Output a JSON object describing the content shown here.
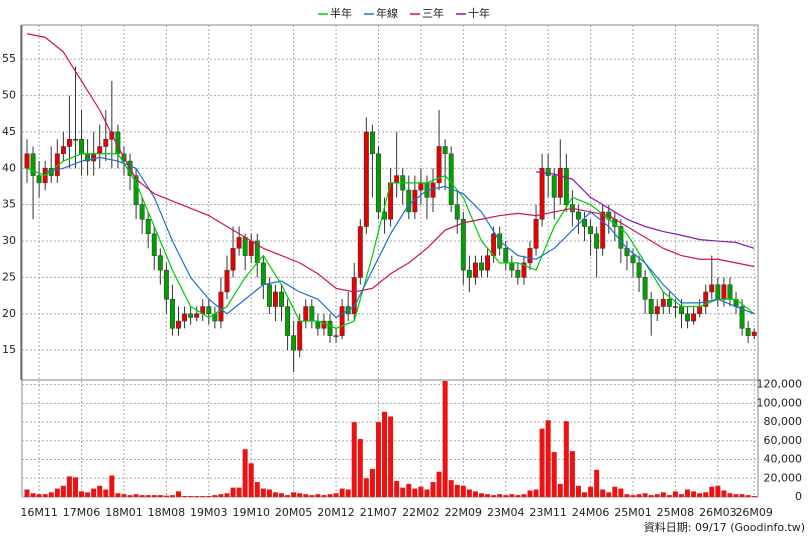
{
  "chart_data": {
    "type": "candlestick",
    "legend": "top",
    "grid": true,
    "footnote": "資料日期: 09/17 (Goodinfo.tw)",
    "up_color": "#e60000",
    "down_color": "#00a000",
    "categories": [
      null,
      null,
      "16M11",
      null,
      null,
      null,
      null,
      null,
      null,
      "17M06",
      null,
      null,
      null,
      null,
      null,
      null,
      "18M01",
      null,
      null,
      null,
      null,
      null,
      null,
      "18M08",
      null,
      null,
      null,
      null,
      null,
      null,
      "19M03",
      null,
      null,
      null,
      null,
      null,
      null,
      "19M10",
      null,
      null,
      null,
      null,
      null,
      null,
      "20M05",
      null,
      null,
      null,
      null,
      null,
      null,
      "20M12",
      null,
      null,
      null,
      null,
      null,
      null,
      "21M07",
      null,
      null,
      null,
      null,
      null,
      null,
      "22M02",
      null,
      null,
      null,
      null,
      null,
      null,
      "22M09",
      null,
      null,
      null,
      null,
      null,
      null,
      "23M04",
      null,
      null,
      null,
      null,
      null,
      null,
      "23M11",
      null,
      null,
      null,
      null,
      null,
      null,
      "24M06",
      null,
      null,
      null,
      null,
      null,
      null,
      "25M01",
      null,
      null,
      null,
      null,
      null,
      null,
      "25M08",
      null,
      null,
      null,
      null,
      null,
      null,
      "26M03",
      null,
      null,
      null,
      null,
      null,
      "26M09"
    ],
    "open": [
      40,
      42,
      39,
      38,
      40,
      39,
      42,
      43,
      44,
      44,
      42,
      41,
      42,
      43,
      44,
      45,
      42,
      41,
      39,
      35,
      33,
      31,
      28,
      26,
      22,
      18,
      19,
      20,
      19.5,
      20,
      21,
      20,
      19,
      23,
      26,
      29,
      30.5,
      28,
      30,
      27,
      24,
      21,
      23,
      21,
      17,
      15,
      19,
      21,
      19,
      18,
      19,
      17,
      17,
      21,
      20,
      25,
      32,
      45,
      42,
      34,
      33,
      38,
      39,
      37,
      34,
      37,
      38,
      36,
      38,
      43,
      42,
      35,
      33,
      26,
      25,
      27,
      26,
      28,
      31,
      29,
      27,
      26,
      25,
      27,
      29,
      33,
      40,
      39,
      36,
      40,
      35,
      34,
      33,
      32,
      31,
      29,
      34,
      33,
      32,
      29,
      28,
      27,
      25,
      22,
      20,
      21,
      22,
      21,
      21,
      20,
      19,
      20,
      21,
      23,
      24,
      22,
      24,
      22,
      21,
      18,
      17
    ],
    "high": [
      44,
      43,
      41,
      41,
      43,
      44,
      45,
      50,
      54,
      48,
      44,
      45,
      46,
      48,
      52,
      46,
      43,
      42,
      40,
      36,
      34,
      32,
      29,
      27,
      24,
      21,
      21,
      21,
      21,
      22,
      22,
      21,
      25,
      28,
      32,
      32,
      31,
      31,
      31,
      28,
      25,
      24,
      24,
      22,
      19,
      20,
      22,
      22,
      20,
      20,
      20,
      18,
      22,
      23,
      27,
      33,
      47,
      46,
      43,
      36,
      40,
      45,
      40,
      39,
      39,
      40,
      39,
      40,
      48,
      44,
      43,
      37,
      34,
      28,
      28,
      28,
      29,
      32,
      32,
      30,
      28,
      27,
      28,
      30,
      35,
      42,
      42,
      40,
      44,
      42,
      37,
      35,
      34,
      33,
      32,
      35,
      35,
      34,
      33,
      30,
      29,
      28,
      26,
      23,
      22,
      23,
      23,
      22,
      22,
      21,
      21,
      22,
      24,
      28,
      25,
      25,
      25,
      23,
      22,
      19,
      18
    ],
    "low": [
      38,
      33,
      36,
      37,
      38,
      38,
      41,
      40,
      40,
      39,
      39,
      39,
      40,
      41,
      40,
      40,
      39,
      37,
      33,
      31,
      29,
      26,
      24,
      20,
      17,
      17,
      18,
      18.5,
      19,
      19,
      18.5,
      18,
      18,
      22,
      25,
      28,
      26,
      27,
      25,
      22,
      20,
      19,
      19,
      15,
      12,
      14,
      18,
      18,
      17,
      17,
      16,
      16,
      16.5,
      19,
      19,
      24,
      31,
      36,
      33,
      31,
      32,
      36,
      35,
      33,
      33,
      35,
      33,
      34,
      37,
      37,
      34,
      31,
      24,
      23,
      24,
      25,
      25,
      27,
      28,
      26,
      25,
      24,
      24,
      26,
      28,
      32,
      36,
      33,
      35,
      34,
      32,
      31,
      30,
      28,
      25,
      28,
      31,
      30,
      27,
      26,
      25,
      23,
      20,
      17,
      19,
      20,
      20,
      19.5,
      18,
      18,
      18.5,
      19.5,
      20,
      22,
      21,
      21,
      21,
      20,
      17,
      16,
      16.5
    ],
    "close": [
      42,
      39,
      38,
      40,
      39,
      42,
      43,
      44,
      44,
      42,
      41,
      42,
      43,
      44,
      45,
      42,
      41,
      39,
      35,
      33,
      31,
      28,
      26,
      22,
      18,
      19,
      20,
      19.5,
      20,
      21,
      20,
      19,
      23,
      26,
      29,
      30.5,
      28,
      30,
      27,
      24,
      21,
      23,
      21,
      17,
      15,
      19,
      21,
      19,
      18,
      19,
      17,
      17,
      21,
      20,
      25,
      32,
      45,
      42,
      34,
      33,
      38,
      39,
      37,
      34,
      37,
      38,
      36,
      38,
      43,
      42,
      35,
      33,
      26,
      25,
      27,
      26,
      28,
      31,
      29,
      27,
      26,
      25,
      27,
      29,
      33,
      40,
      39,
      36,
      40,
      35,
      34,
      33,
      32,
      31,
      29,
      34,
      33,
      32,
      29,
      28,
      27,
      25,
      22,
      20,
      21,
      22,
      21,
      21,
      20,
      19,
      20,
      21,
      23,
      24,
      22,
      24,
      22,
      21,
      18,
      17,
      17.5
    ],
    "ylim": [
      10.9,
      59.7
    ],
    "yticks": [
      15,
      20,
      25,
      30,
      35,
      40,
      45,
      50,
      55
    ],
    "moving_averages": [
      {
        "name": "半年",
        "color": "#00cc00",
        "x": [
          0,
          3,
          6,
          9,
          12,
          15,
          18,
          21,
          24,
          27,
          30,
          33,
          36,
          39,
          42,
          45,
          48,
          51,
          54,
          57,
          60,
          63,
          66,
          69,
          72,
          75,
          78,
          81,
          84,
          87,
          90,
          93,
          96,
          99,
          102,
          105,
          108,
          111,
          114,
          117,
          120
        ],
        "values": [
          40,
          39,
          41,
          42,
          42,
          42,
          38,
          32,
          26,
          21,
          19.5,
          21,
          25,
          28,
          24,
          19,
          19,
          18,
          19,
          28,
          38,
          38,
          38,
          39,
          36,
          30,
          27,
          27,
          26,
          32,
          36,
          35,
          33,
          31,
          27,
          23,
          21,
          21,
          22,
          22,
          20
        ]
      },
      {
        "name": "年線",
        "color": "#1e6fd0",
        "x": [
          3,
          6,
          9,
          12,
          15,
          18,
          21,
          24,
          27,
          30,
          33,
          36,
          39,
          42,
          45,
          48,
          51,
          54,
          57,
          60,
          63,
          66,
          69,
          72,
          75,
          78,
          81,
          84,
          87,
          90,
          93,
          96,
          99,
          102,
          105,
          108,
          111,
          114,
          117,
          120
        ],
        "values": [
          39.5,
          40,
          41,
          41.5,
          41,
          40,
          36,
          30,
          25,
          22,
          20,
          22,
          24,
          24.5,
          23,
          22,
          19.5,
          21,
          26,
          31,
          35,
          37,
          37.5,
          36.5,
          34,
          30,
          28,
          27.5,
          29,
          31.5,
          34,
          32,
          29,
          27,
          24,
          21.5,
          21.5,
          22,
          21,
          20
        ]
      },
      {
        "name": "三年",
        "color": "#d0105a",
        "x": [
          0,
          3,
          6,
          9,
          12,
          15,
          18,
          21,
          24,
          27,
          30,
          33,
          36,
          39,
          42,
          45,
          48,
          51,
          54,
          57,
          60,
          63,
          66,
          69,
          72,
          75,
          78,
          81,
          84,
          87,
          90,
          93,
          96,
          99,
          102,
          105,
          108,
          111,
          114,
          117,
          120
        ],
        "values": [
          58.5,
          58,
          56,
          52,
          48,
          43,
          38.5,
          36.5,
          35.5,
          34.5,
          33.5,
          32,
          30.5,
          29,
          28,
          27,
          25.5,
          23.5,
          23,
          23.5,
          25.5,
          27,
          29,
          31.5,
          32.5,
          33,
          33.5,
          33.8,
          33.5,
          34,
          34.5,
          34,
          33.5,
          32,
          30.5,
          29,
          28,
          27.5,
          27.5,
          27,
          26.5
        ]
      },
      {
        "name": "十年",
        "color": "#8a1aa8",
        "x": [
          84,
          87,
          90,
          93,
          96,
          99,
          102,
          105,
          108,
          111,
          114,
          117,
          120
        ],
        "values": [
          39.5,
          39.2,
          38.5,
          36,
          34.5,
          33,
          32,
          31.3,
          30.8,
          30.2,
          30,
          29.8,
          29
        ]
      }
    ],
    "volume": {
      "color": "#ee1111",
      "ylim": [
        0,
        125000
      ],
      "yticks": [
        0,
        {
          "value": 20000,
          "label": "20,000"
        },
        {
          "value": 40000,
          "label": "40,000"
        },
        {
          "value": 60000,
          "label": "60,000"
        },
        {
          "value": 80000,
          "label": "80,000"
        },
        {
          "value": 100000,
          "label": "100,000"
        },
        {
          "value": 120000,
          "label": "120,000"
        }
      ],
      "values": [
        8000,
        4000,
        3000,
        3000,
        5000,
        9000,
        12000,
        22000,
        21000,
        6000,
        5000,
        9000,
        12000,
        8000,
        23000,
        4000,
        3000,
        2000,
        3000,
        2000,
        2000,
        2000,
        2000,
        1500,
        2000,
        6000,
        1000,
        1000,
        1000,
        1000,
        1000,
        2000,
        3000,
        4000,
        10000,
        10000,
        51000,
        36000,
        16000,
        9000,
        8000,
        5000,
        4000,
        2000,
        5000,
        4000,
        3000,
        2000,
        3000,
        2000,
        3000,
        4000,
        9000,
        8000,
        80000,
        62000,
        20000,
        30000,
        80000,
        91000,
        86000,
        17000,
        10000,
        14000,
        9000,
        11000,
        8000,
        16000,
        27000,
        124000,
        18000,
        13000,
        12000,
        8000,
        6000,
        4000,
        3000,
        2000,
        3000,
        2000,
        3000,
        2000,
        3000,
        7000,
        8000,
        73000,
        82000,
        48000,
        14000,
        81000,
        49000,
        12000,
        5000,
        11000,
        29000,
        8000,
        5000,
        11000,
        9000,
        3000,
        2000,
        3000,
        4000,
        2000,
        3000,
        5000,
        2000,
        6000,
        3000,
        8000,
        6000,
        4000,
        5000,
        11000,
        12000,
        7000,
        4000,
        3000,
        3000,
        2000,
        1000
      ]
    }
  }
}
